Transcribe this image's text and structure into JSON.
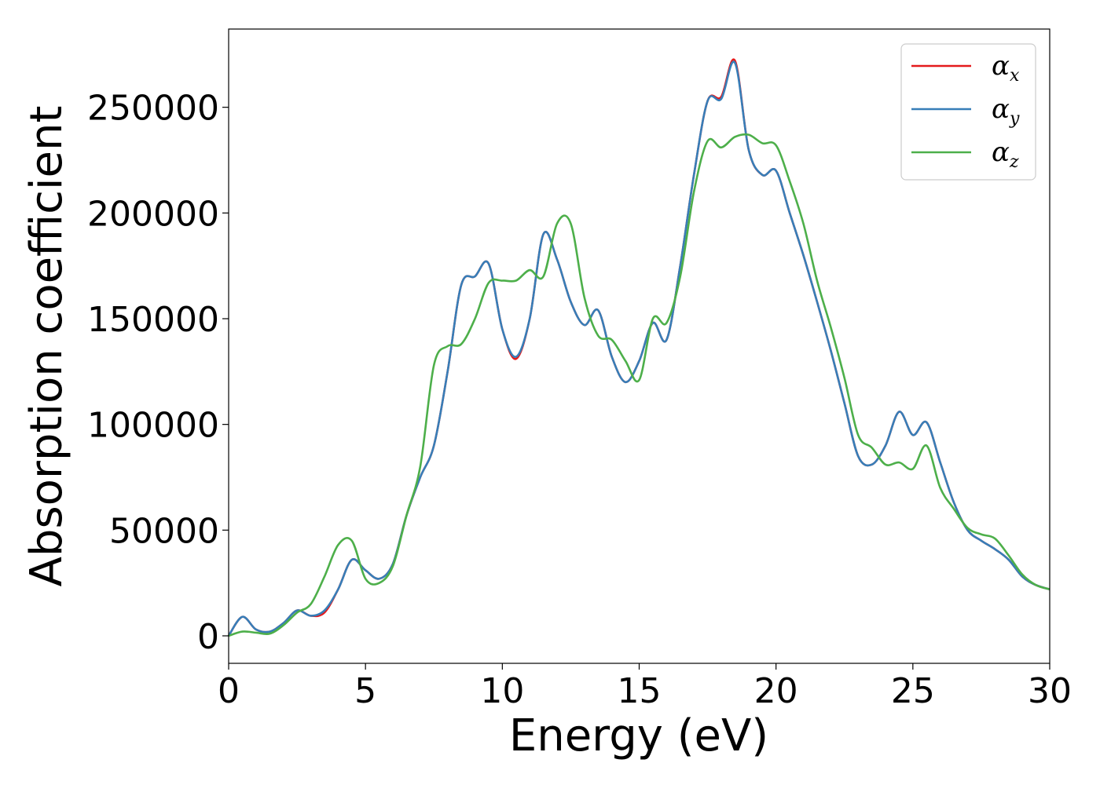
{
  "chart_data": {
    "type": "line",
    "xlabel": "Energy (eV)",
    "ylabel": "Absorption coefficient",
    "xlim": [
      0,
      30
    ],
    "ylim": [
      -13000,
      287000
    ],
    "x_ticks": [
      0,
      5,
      10,
      15,
      20,
      25,
      30
    ],
    "y_ticks": [
      0,
      50000,
      100000,
      150000,
      200000,
      250000
    ],
    "grid": false,
    "legend_position": "top-right",
    "x": [
      0,
      0.5,
      1,
      1.5,
      2,
      2.5,
      3,
      3.5,
      4,
      4.5,
      5,
      5.5,
      6,
      6.5,
      7,
      7.5,
      8,
      8.5,
      9,
      9.5,
      10,
      10.5,
      11,
      11.5,
      12,
      12.5,
      13,
      13.5,
      14,
      14.5,
      15,
      15.5,
      16,
      16.5,
      17,
      17.5,
      18,
      18.5,
      19,
      19.5,
      20,
      20.5,
      21,
      21.5,
      22,
      22.5,
      23,
      23.5,
      24,
      24.5,
      25,
      25.5,
      26,
      26.5,
      27,
      27.5,
      28,
      28.5,
      29,
      29.5,
      30
    ],
    "series": [
      {
        "name": "α",
        "subscript": "x",
        "color": "#e41a1c",
        "values": [
          0,
          9000,
          3000,
          2000,
          6000,
          12000,
          9500,
          11000,
          22000,
          36000,
          31000,
          27000,
          34000,
          57000,
          75000,
          90000,
          125000,
          166000,
          170000,
          176000,
          145000,
          131000,
          150000,
          190000,
          178000,
          158000,
          147000,
          154000,
          132000,
          120000,
          130000,
          148000,
          140000,
          175000,
          218000,
          253000,
          255000,
          272000,
          230000,
          218000,
          220000,
          200000,
          180000,
          158000,
          135000,
          110000,
          85000,
          81000,
          90000,
          106000,
          95000,
          101000,
          82000,
          63000,
          50000,
          45000,
          41000,
          36000,
          28000,
          24000,
          22000
        ]
      },
      {
        "name": "α",
        "subscript": "y",
        "color": "#377eb8",
        "values": [
          0,
          9000,
          3000,
          2000,
          6000,
          12000,
          9500,
          12000,
          22000,
          36000,
          31000,
          27000,
          34000,
          57000,
          75000,
          90000,
          125000,
          166000,
          170000,
          176000,
          145000,
          132000,
          150000,
          190000,
          178000,
          158000,
          147000,
          154000,
          132000,
          120000,
          130000,
          148000,
          140000,
          175000,
          218000,
          253000,
          254000,
          271000,
          230000,
          218000,
          220000,
          200000,
          180000,
          158000,
          135000,
          110000,
          85000,
          81000,
          90000,
          106000,
          95000,
          101000,
          82000,
          63000,
          50000,
          45000,
          41000,
          36000,
          28000,
          24000,
          22000
        ]
      },
      {
        "name": "α",
        "subscript": "z",
        "color": "#4daf4a",
        "values": [
          0,
          2000,
          1500,
          1000,
          5000,
          11000,
          15000,
          28000,
          43000,
          45000,
          27000,
          25000,
          33000,
          57000,
          80000,
          128000,
          137000,
          138000,
          150000,
          167000,
          168000,
          168000,
          173000,
          170000,
          195000,
          195000,
          160000,
          142000,
          140000,
          130000,
          121000,
          150000,
          148000,
          170000,
          210000,
          234000,
          231000,
          236000,
          237000,
          233000,
          232000,
          215000,
          195000,
          168000,
          146000,
          122000,
          95000,
          89000,
          81000,
          82000,
          79000,
          90000,
          70000,
          60000,
          51000,
          48000,
          46000,
          38000,
          29000,
          24000,
          22000
        ]
      }
    ]
  }
}
